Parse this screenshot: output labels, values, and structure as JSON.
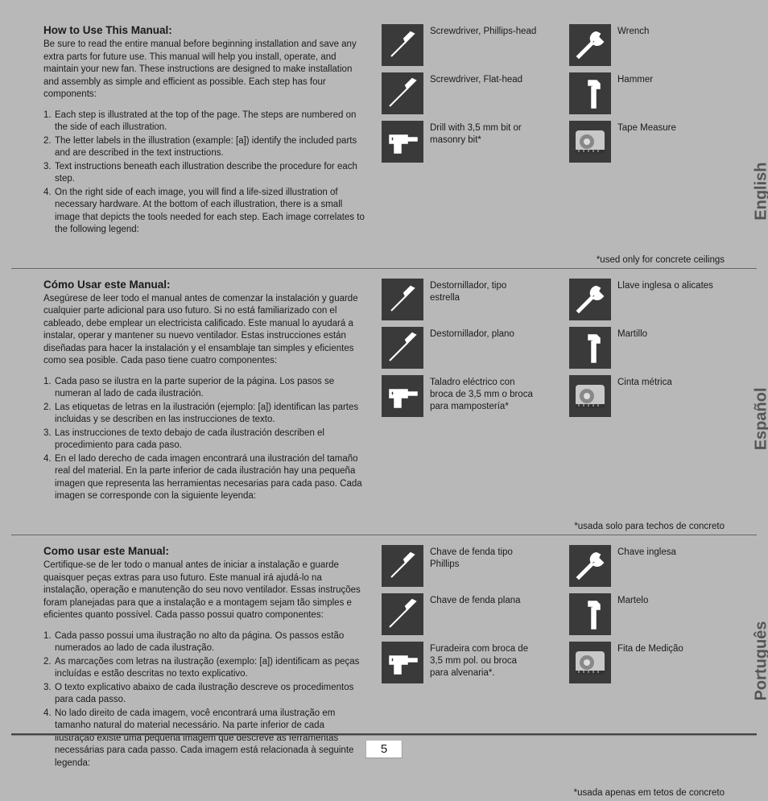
{
  "pageNumber": "5",
  "langTabs": {
    "en": "English",
    "es": "Español",
    "pt": "Português"
  },
  "sections": [
    {
      "heading": "How to Use This Manual:",
      "intro": "Be sure to read the entire manual before beginning installation and save any extra parts for future use. This manual will help you install, operate, and maintain your new fan. These instructions are designed to make installation and assembly as simple and efficient as possible. Each step has four components:",
      "items": [
        "Each step is illustrated at the top of the page. The steps are numbered on the side of each illustration.",
        "The letter labels in the illustration (example: [a]) identify the included parts and are described in the text instructions.",
        "Text instructions beneath each illustration describe the procedure for each step.",
        "On the right side of each image, you will find a life-sized illustration of necessary hardware. At the bottom of each illustration, there is a small image that depicts the tools needed for each step. Each image correlates to the following legend:"
      ],
      "toolsL": [
        "Screwdriver, Phillips-head",
        "Screwdriver, Flat-head",
        "Drill with 3,5 mm bit or masonry bit*"
      ],
      "toolsR": [
        "Wrench",
        "Hammer",
        "Tape Measure"
      ],
      "footnote": "*used only for concrete ceilings"
    },
    {
      "heading": "Cómo Usar este Manual:",
      "intro": "Asegúrese de leer todo el manual antes de comenzar la instalación y guarde cualquier parte adicional para uso futuro. Si no está familiarizado con el cableado, debe emplear un electricista calificado. Este manual lo ayudará a instalar, operar y mantener su nuevo ventilador. Estas instrucciones están diseñadas para hacer la instalación y el ensamblaje tan simples y eficientes como sea posible. Cada paso tiene cuatro componentes:",
      "items": [
        "Cada paso se ilustra en la parte superior de la página. Los pasos se numeran al lado de cada ilustración.",
        "Las etiquetas de letras en la ilustración (ejemplo: [a]) identifican las partes incluidas y se describen en las instrucciones de texto.",
        "Las instrucciones de texto debajo de cada ilustración describen el procedimiento para cada paso.",
        "En el lado derecho de cada imagen encontrará una ilustración del tamaño real del material. En la parte inferior de cada ilustración hay una pequeña imagen que representa las herramientas necesarias para cada paso. Cada imagen se corresponde con la siguiente leyenda:"
      ],
      "toolsL": [
        "Destornillador, tipo estrella",
        "Destornillador, plano",
        "Taladro eléctrico con broca de 3,5 mm o broca para mampostería*"
      ],
      "toolsR": [
        "Llave inglesa o alicates",
        "Martillo",
        "Cinta métrica"
      ],
      "footnote": "*usada solo para techos de concreto"
    },
    {
      "heading": "Como usar este  Manual:",
      "intro": "Certifique-se de ler todo o manual antes de iniciar a instalação e guarde quaisquer peças extras para uso futuro.\nEste manual irá ajudá-lo na instalação, operação e manutenção do seu novo ventilador. Essas instruções foram planejadas para que a instalação e a montagem sejam tão simples e eficientes quanto possível. Cada passo possui quatro componentes:",
      "items": [
        "Cada passo possui uma ilustração no alto da página. Os passos estão numerados ao lado de cada ilustração.",
        "As marcações com letras na ilustração (exemplo: [a]) identificam as peças incluídas e estão descritas no texto explicativo.",
        "O texto explicativo abaixo de cada ilustração descreve os procedimentos para cada passo.",
        "No lado direito de cada imagem, você encontrará uma ilustração em tamanho natural do material necessário. Na parte inferior de cada ilustração existe uma pequena imagem que descreve as ferramentas necessárias para cada passo. Cada imagem está relacionada à seguinte legenda:"
      ],
      "toolsL": [
        "Chave de fenda tipo Phillips",
        "Chave de fenda plana",
        "Furadeira com broca de 3,5 mm pol. ou broca para alvenaria*."
      ],
      "toolsR": [
        "Chave inglesa",
        "Martelo",
        "Fita de Medição"
      ],
      "footnote": "*usada apenas em tetos de concreto"
    }
  ],
  "iconColors": {
    "bg": "#3a3a3a",
    "stroke": "#ffffff",
    "tape": "#c0c0c0"
  }
}
